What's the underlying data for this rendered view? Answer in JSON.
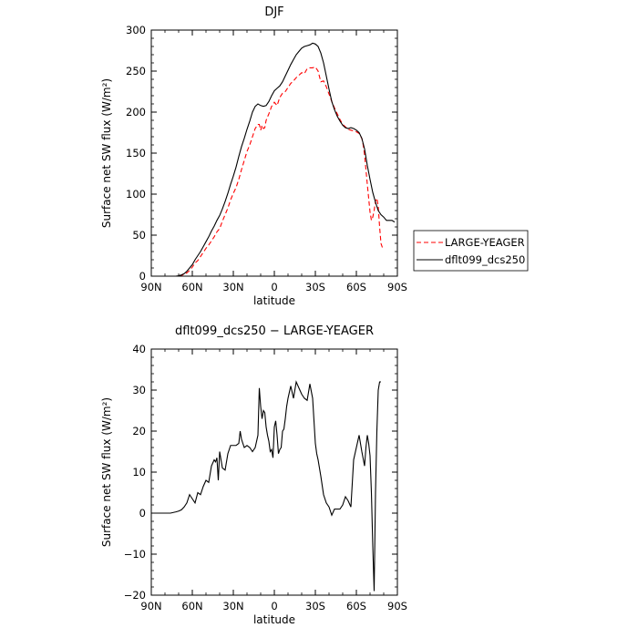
{
  "chart_data": [
    {
      "type": "line",
      "title": "DJF",
      "xlabel": "latitude",
      "ylabel": "Surface net SW flux (W/m²)",
      "xlim": [
        90,
        -90
      ],
      "ylim": [
        0,
        300
      ],
      "xticks": [
        90,
        60,
        30,
        0,
        -30,
        -60,
        -90
      ],
      "xtick_labels": [
        "90N",
        "60N",
        "30N",
        "0",
        "30S",
        "60S",
        "90S"
      ],
      "yticks": [
        0,
        50,
        100,
        150,
        200,
        250,
        300
      ],
      "ytick_labels": [
        "0",
        "50",
        "100",
        "150",
        "200",
        "250",
        "300"
      ],
      "legend": "right",
      "series": [
        {
          "name": "LARGE-YEAGER",
          "color": "#ff0000",
          "dash": "dashed",
          "x": [
            75,
            72,
            70,
            68,
            66,
            64,
            62,
            60,
            58,
            56,
            54,
            52,
            50,
            48,
            46,
            44,
            42,
            40,
            38,
            36,
            34,
            32,
            30,
            28,
            26,
            24,
            22,
            20,
            18,
            16,
            14,
            12,
            11,
            10,
            9,
            8,
            7,
            6,
            4,
            2,
            0,
            -2,
            -4,
            -6,
            -8,
            -10,
            -12,
            -14,
            -16,
            -18,
            -20,
            -22,
            -24,
            -26,
            -28,
            -30,
            -32,
            -34,
            -36,
            -38,
            -40,
            -42,
            -44,
            -46,
            -48,
            -50,
            -52,
            -54,
            -56,
            -58,
            -60,
            -62,
            -64,
            -65,
            -66,
            -67,
            -68,
            -69,
            -70,
            -71,
            -72,
            -73,
            -74,
            -75,
            -76,
            -77,
            -78,
            -79
          ],
          "y": [
            0,
            0,
            0.5,
            1,
            2,
            4,
            7,
            11,
            16,
            19,
            24,
            29,
            34,
            38,
            43,
            48,
            54,
            58,
            67,
            75,
            83,
            93,
            101,
            108,
            118,
            130,
            141,
            152,
            160,
            170,
            180,
            185,
            185,
            178,
            184,
            180,
            181,
            190,
            198,
            207,
            212,
            208,
            218,
            223,
            225,
            230,
            235,
            238,
            242,
            245,
            248,
            247,
            253,
            254,
            254,
            255,
            250,
            237,
            238,
            231,
            222,
            213,
            205,
            198,
            191,
            185,
            182,
            179,
            178,
            177,
            176,
            174,
            168,
            160,
            148,
            130,
            112,
            95,
            78,
            68,
            72,
            80,
            92,
            95,
            85,
            60,
            40,
            35
          ]
        },
        {
          "name": "dflt099_dcs250",
          "color": "#000000",
          "dash": "solid",
          "x": [
            75,
            72,
            70,
            68,
            66,
            64,
            62,
            60,
            58,
            56,
            54,
            52,
            50,
            48,
            46,
            44,
            42,
            40,
            38,
            36,
            34,
            32,
            30,
            28,
            26,
            24,
            22,
            20,
            18,
            16,
            14,
            12,
            10,
            8,
            6,
            4,
            2,
            0,
            -2,
            -4,
            -6,
            -8,
            -10,
            -12,
            -14,
            -16,
            -18,
            -20,
            -22,
            -24,
            -26,
            -28,
            -30,
            -32,
            -34,
            -36,
            -38,
            -40,
            -42,
            -44,
            -46,
            -48,
            -50,
            -52,
            -54,
            -56,
            -58,
            -60,
            -62,
            -64,
            -66,
            -68,
            -70,
            -72,
            -74,
            -76,
            -78,
            -80,
            -82,
            -84,
            -86,
            -88
          ],
          "y": [
            0,
            0,
            0.5,
            1.5,
            3,
            6,
            10,
            14,
            20,
            25,
            30,
            36,
            42,
            48,
            55,
            61,
            68,
            74,
            82,
            91,
            101,
            112,
            122,
            133,
            146,
            158,
            168,
            179,
            189,
            200,
            207,
            210,
            208,
            207,
            208,
            213,
            220,
            226,
            229,
            232,
            237,
            244,
            251,
            258,
            264,
            270,
            274,
            278,
            280,
            281,
            282,
            284,
            283,
            280,
            272,
            260,
            244,
            228,
            213,
            203,
            195,
            189,
            184,
            181,
            180,
            181,
            180,
            178,
            175,
            168,
            155,
            135,
            118,
            102,
            90,
            80,
            75,
            72,
            68,
            68,
            68,
            66
          ]
        }
      ]
    },
    {
      "type": "line",
      "title": "dflt099_dcs250 − LARGE-YEAGER",
      "xlabel": "latitude",
      "ylabel": "Surface net SW flux (W/m²)",
      "xlim": [
        90,
        -90
      ],
      "ylim": [
        -20,
        40
      ],
      "xticks": [
        90,
        60,
        30,
        0,
        -30,
        -60,
        -90
      ],
      "xtick_labels": [
        "90N",
        "60N",
        "30N",
        "0",
        "30S",
        "60S",
        "90S"
      ],
      "yticks": [
        -20,
        -10,
        0,
        10,
        20,
        30,
        40
      ],
      "ytick_labels": [
        "−20",
        "−10",
        "0",
        "10",
        "20",
        "30",
        "40"
      ],
      "series": [
        {
          "color": "#000000",
          "x": [
            90,
            84,
            80,
            76,
            72,
            70,
            68,
            66,
            64,
            62,
            60,
            58,
            56,
            54,
            52,
            50,
            48,
            46,
            44,
            43,
            42,
            41,
            40,
            38,
            36,
            34,
            32,
            30,
            28,
            26,
            25,
            24,
            22,
            20,
            18,
            16,
            14,
            12,
            11,
            10,
            9,
            8,
            7,
            6,
            5,
            4,
            3,
            2,
            1,
            0,
            -1,
            -2,
            -3,
            -4,
            -5,
            -6,
            -7,
            -8,
            -9,
            -10,
            -12,
            -14,
            -16,
            -18,
            -20,
            -22,
            -24,
            -26,
            -28,
            -30,
            -31,
            -32,
            -34,
            -36,
            -38,
            -40,
            -42,
            -44,
            -46,
            -48,
            -50,
            -52,
            -54,
            -56,
            -58,
            -60,
            -62,
            -64,
            -66,
            -67,
            -68,
            -69,
            -70,
            -71,
            -72,
            -73,
            -74,
            -75,
            -76,
            -77,
            -78
          ],
          "y": [
            0,
            0,
            0,
            0,
            0.3,
            0.5,
            0.8,
            1.5,
            2.5,
            4.5,
            3.5,
            2.5,
            5,
            4.5,
            6.5,
            8,
            7.5,
            11.5,
            13,
            12.5,
            13.5,
            8,
            15,
            11,
            10.5,
            14.5,
            16.5,
            16.5,
            16.5,
            17,
            20,
            18,
            16,
            16.5,
            16,
            15,
            16,
            19,
            30.5,
            26,
            23,
            25,
            24.5,
            21,
            19,
            17.5,
            15,
            15.5,
            13.5,
            21,
            22.5,
            19,
            14.5,
            15.5,
            16,
            20,
            20.5,
            23,
            26,
            28,
            31,
            28,
            32,
            30.5,
            29,
            28,
            27.5,
            31.5,
            28,
            17,
            14.5,
            13,
            9,
            4.5,
            2.5,
            1.5,
            -0.5,
            1,
            1,
            1,
            2,
            4,
            3,
            1.5,
            13,
            16,
            19,
            15,
            11.5,
            16,
            19,
            17,
            14,
            5,
            -8,
            -19,
            5,
            20,
            30,
            32,
            32
          ]
        }
      ]
    }
  ]
}
